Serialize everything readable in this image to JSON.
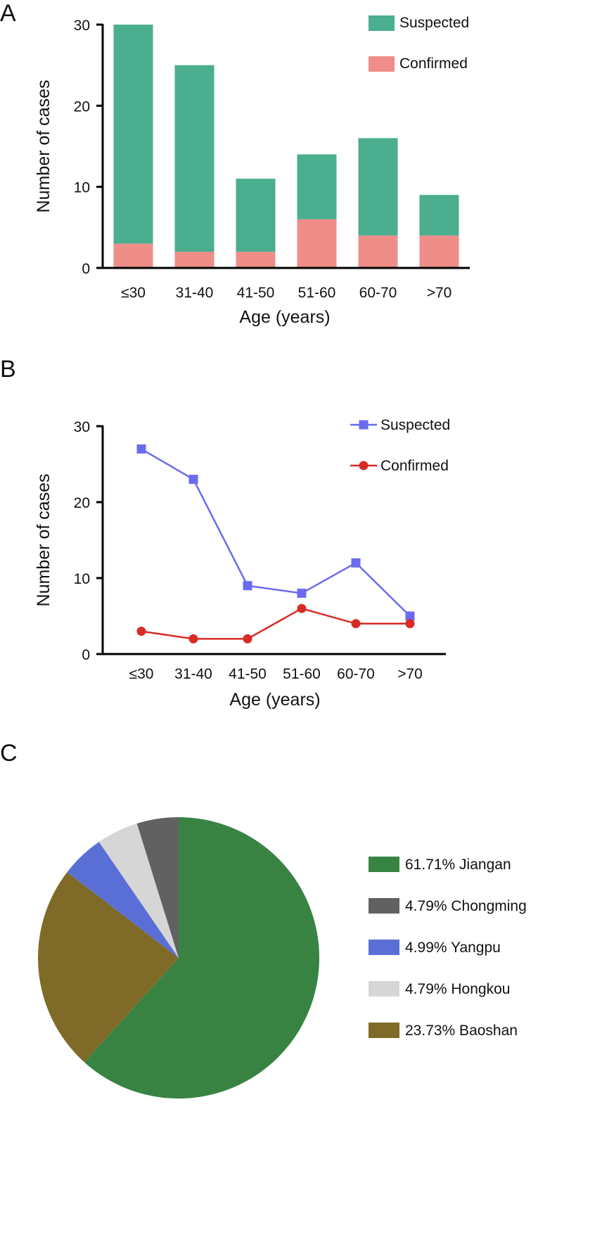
{
  "panels": [
    {
      "letter": "A"
    },
    {
      "letter": "B"
    },
    {
      "letter": "C"
    }
  ],
  "chart_data": [
    {
      "type": "bar",
      "stacked": true,
      "categories": [
        "≤30",
        "31-40",
        "41-50",
        "51-60",
        "60-70",
        ">70"
      ],
      "series": [
        {
          "name": "Suspected",
          "values": [
            27,
            23,
            9,
            8,
            12,
            5
          ],
          "color": "#4aae8f"
        },
        {
          "name": "Confirmed",
          "values": [
            3,
            2,
            2,
            6,
            4,
            4
          ],
          "color": "#ef8e88"
        }
      ],
      "xlabel": "Age (years)",
      "ylabel": "Number of cases",
      "ylim": [
        0,
        30
      ],
      "yticks": [
        0,
        10,
        20,
        30
      ],
      "legend": "top-right",
      "grid": false
    },
    {
      "type": "line",
      "categories": [
        "≤30",
        "31-40",
        "41-50",
        "51-60",
        "60-70",
        ">70"
      ],
      "series": [
        {
          "name": "Suspected",
          "values": [
            27,
            23,
            9,
            8,
            12,
            5
          ],
          "color": "#6b6bf0",
          "marker": "square"
        },
        {
          "name": "Confirmed",
          "values": [
            3,
            2,
            2,
            6,
            4,
            4
          ],
          "color": "#d92b25",
          "marker": "circle"
        }
      ],
      "xlabel": "Age (years)",
      "ylabel": "Number of cases",
      "ylim": [
        0,
        30
      ],
      "yticks": [
        0,
        10,
        20,
        30
      ],
      "legend": "top-right",
      "grid": false
    },
    {
      "type": "pie",
      "slices": [
        {
          "label": "61.71% Jiangan",
          "value": 61.71,
          "color": "#388342"
        },
        {
          "label": "4.79% Chongming",
          "value": 4.79,
          "color": "#616161"
        },
        {
          "label": "4.99% Yangpu",
          "value": 4.99,
          "color": "#5a6fd6"
        },
        {
          "label": "4.79% Hongkou",
          "value": 4.79,
          "color": "#d6d6d6"
        },
        {
          "label": "23.73% Baoshan",
          "value": 23.73,
          "color": "#7f6b27"
        }
      ],
      "order_drawn": [
        "61.71% Jiangan",
        "23.73% Baoshan",
        "4.99% Yangpu",
        "4.79% Hongkou",
        "4.79% Chongming"
      ],
      "legend": "right"
    }
  ]
}
